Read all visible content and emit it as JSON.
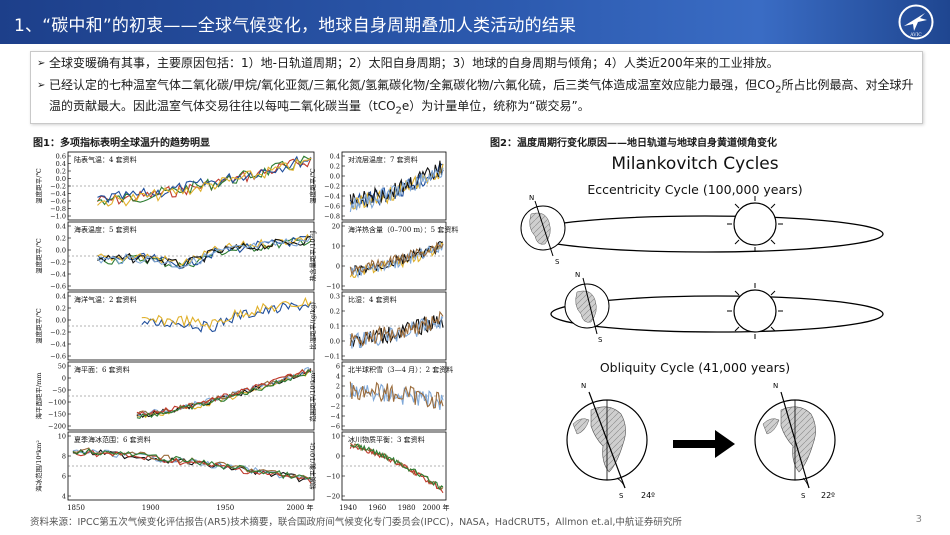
{
  "header": {
    "title": "1、“碳中和”的初衷——全球气候变化，地球自身周期叠加人类活动的结果",
    "logo_icon": "airplane-logo-icon",
    "logo_text": "AVIC"
  },
  "bullets": [
    {
      "marker": "➢",
      "text": "全球变暖确有其事，主要原因包括：1）地-日轨道周期；2）太阳自身周期；3）地球的自身周期与倾角；4）人类近200年来的工业排放。"
    },
    {
      "marker": "➢",
      "text_a": "已经认定的七种温室气体二氧化碳/甲烷/氧化亚氮/三氟化氮/氢氟碳化物/全氟碳化物/六氟化硫，后三类气体造成温室效应能力最强，但CO",
      "sub_a": "2",
      "text_b": "所占比例最高、对全球升温的贡献最大。因此温室气体交易往往以每吨二氧化碳当量（tCO",
      "sub_b": "2",
      "text_c": "e）为计量单位，统称为“碳交易”。"
    }
  ],
  "figure1": {
    "caption": "图1：多项指标表明全球温升的趋势明显",
    "left_panels": [
      {
        "label": "陆表气温：4 套资料",
        "ylabel": "温度距平/℃",
        "ticks": [
          "0.6",
          "0.4",
          "0.2",
          "0.0",
          "−0.2",
          "−0.4",
          "−0.6",
          "−0.8",
          "−1.0"
        ]
      },
      {
        "label": "海表温度：5 套资料",
        "ylabel": "温度距平/℃",
        "ticks": [
          "0.4",
          "0.2",
          "0.0",
          "−0.2",
          "−0.4",
          "−0.6"
        ]
      },
      {
        "label": "海洋气温：2 套资料",
        "ylabel": "温度距平/℃",
        "ticks": [
          "0.4",
          "0.2",
          "0.0",
          "−0.2",
          "−0.4",
          "−0.6"
        ]
      },
      {
        "label": "海平面：6 套资料",
        "ylabel": "海平面距平/mm",
        "ticks": [
          "50",
          "0",
          "−50",
          "−100",
          "−150",
          "−200"
        ]
      },
      {
        "label": "夏季海冰范围：6 套资料",
        "ylabel": "海冰范围/10⁶km²",
        "ticks": [
          "10",
          "8",
          "6",
          "4"
        ]
      }
    ],
    "right_panels": [
      {
        "label": "对流层温度：7 套资料",
        "ylabel": "温度距平/℃",
        "ticks": [
          "0.4",
          "0.2",
          "0.0",
          "−0.2",
          "−0.4",
          "−0.6",
          "−0.8"
        ]
      },
      {
        "label": "海洋热含量（0–700 m）：5 套资料",
        "ylabel": "热含量距平/10²²J",
        "ticks": [
          "20",
          "10",
          "0",
          "−10"
        ]
      },
      {
        "label": "比湿：4 套资料",
        "ylabel": "比湿距平/(g/kg)",
        "ticks": [
          "0.3",
          "0.2",
          "0.1",
          "0.0",
          "−0.1"
        ]
      },
      {
        "label": "北半球积雪（3—4 月）：2 套资料",
        "ylabel": "范围距平/10⁶km²",
        "ticks": [
          "6",
          "4",
          "2",
          "0",
          "−2",
          "−4",
          "−6"
        ]
      },
      {
        "label": "冰川物质平衡：3 套资料",
        "ylabel": "物质平衡/10³Gt",
        "ticks": [
          "10",
          "0",
          "−10",
          "−20"
        ]
      }
    ],
    "x_ticks_left": [
      "1850",
      "1900",
      "1950",
      "2000 年"
    ],
    "x_ticks_right": [
      "1940",
      "1960",
      "1980",
      "2000 年"
    ],
    "series_colors": [
      "#c0392b",
      "#2e7d32",
      "#1f4e9c",
      "#e0b02a",
      "#111111",
      "#7fa8d8",
      "#9a6b3a"
    ]
  },
  "figure2": {
    "caption": "图2：温度周期行变化原因——地日轨道与地球自身黄道倾角变化",
    "title": "Milankovitch Cycles",
    "eccentricity": "Eccentricity Cycle (100,000 years)",
    "obliquity": "Obliquity Cycle (41,000 years)",
    "angle_a": "24º",
    "angle_b": "22º",
    "north": "N",
    "south": "S"
  },
  "source": "资料来源：IPCC第五次气候变化评估报告(AR5)技术摘要，联合国政府间气候变化专门委员会(IPCC)，NASA，HadCRUT5，Allmon et.al,中航证券研究所",
  "page_number": "3"
}
